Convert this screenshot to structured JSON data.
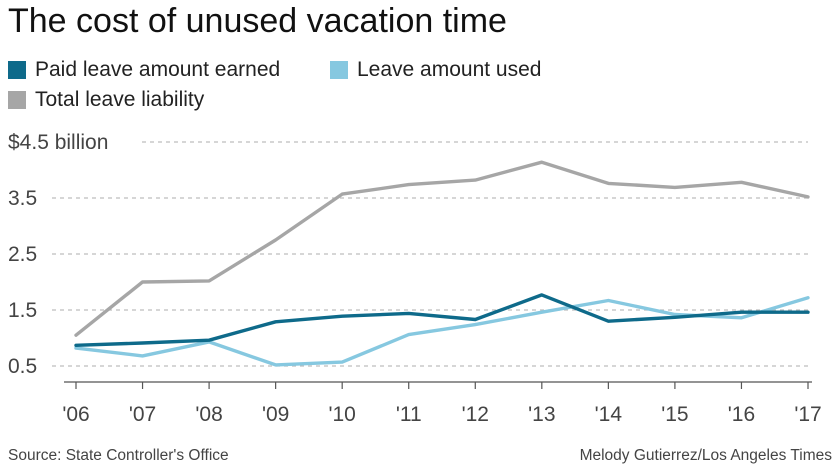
{
  "chart_data": {
    "type": "line",
    "title": "The cost of unused vacation time",
    "categories": [
      "'06",
      "'07",
      "'08",
      "'09",
      "'10",
      "'11",
      "'12",
      "'13",
      "'14",
      "'15",
      "'16",
      "'17"
    ],
    "series": [
      {
        "name": "Total leave liability",
        "color": "#a6a6a6",
        "values": [
          1.05,
          2.0,
          2.02,
          2.75,
          3.57,
          3.74,
          3.82,
          4.14,
          3.76,
          3.69,
          3.78,
          3.52
        ]
      },
      {
        "name": "Leave amount used",
        "color": "#86c8e0",
        "values": [
          0.82,
          0.68,
          0.93,
          0.52,
          0.57,
          1.06,
          1.24,
          1.46,
          1.67,
          1.42,
          1.36,
          1.72
        ]
      },
      {
        "name": "Paid leave amount earned",
        "color": "#0e6a8a",
        "values": [
          0.87,
          0.91,
          0.96,
          1.29,
          1.39,
          1.44,
          1.33,
          1.77,
          1.3,
          1.37,
          1.46,
          1.46
        ]
      }
    ],
    "yticks": [
      {
        "value": 4.5,
        "label": "$4.5 billion"
      },
      {
        "value": 3.5,
        "label": "3.5"
      },
      {
        "value": 2.5,
        "label": "2.5"
      },
      {
        "value": 1.5,
        "label": "1.5"
      },
      {
        "value": 0.5,
        "label": "0.5"
      }
    ],
    "ylim": [
      0.5,
      4.5
    ],
    "grid": true,
    "legend_position": "top-left"
  },
  "legend": [
    {
      "label": "Paid leave amount earned",
      "color": "#0e6a8a"
    },
    {
      "label": "Leave amount used",
      "color": "#86c8e0"
    },
    {
      "label": "Total leave liability",
      "color": "#a6a6a6"
    }
  ],
  "footer": {
    "source": "Source: State Controller's Office",
    "credit": "Melody Gutierrez/Los Angeles Times"
  }
}
